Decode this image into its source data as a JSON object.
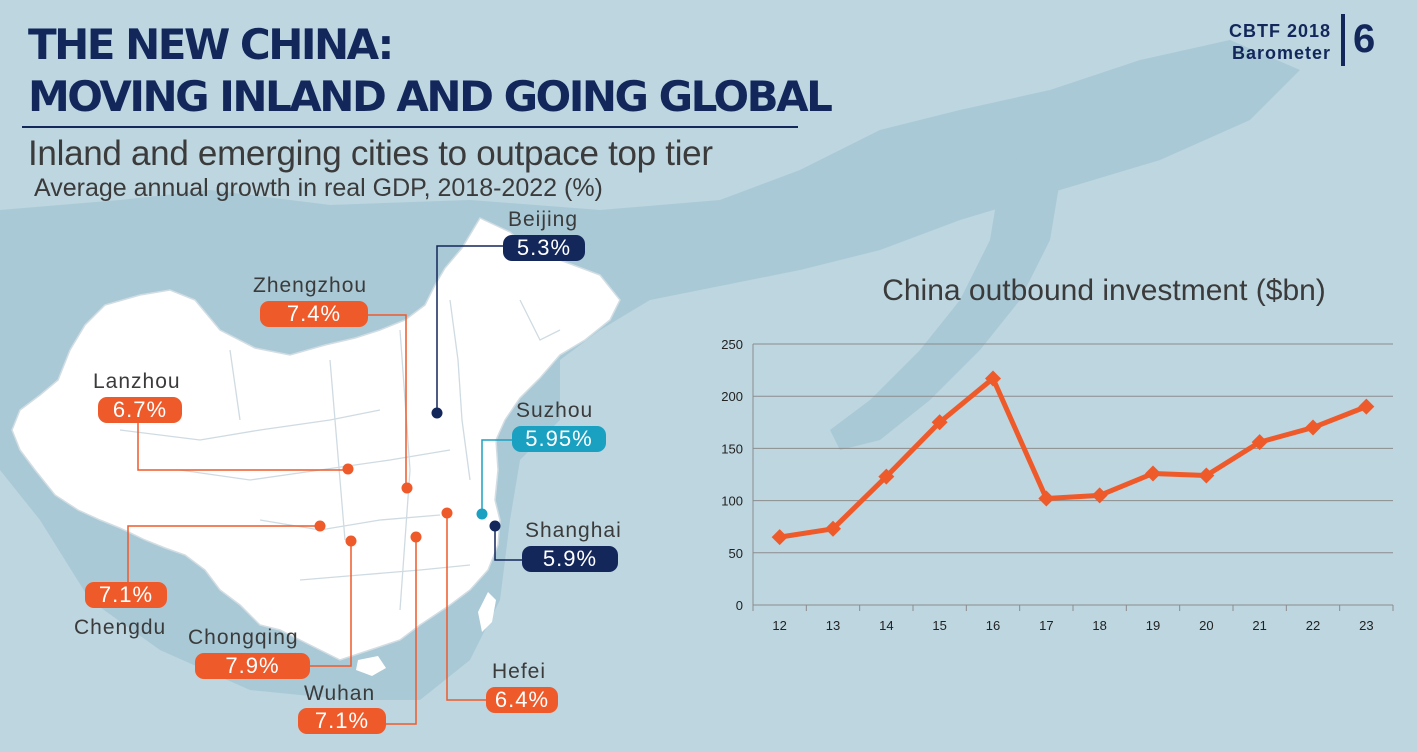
{
  "header": {
    "title_line1": "THE NEW CHINA:",
    "title_line2": "MOVING INLAND AND GOING GLOBAL",
    "subtitle": "Inland and emerging cities to outpace top tier",
    "subnote": "Average annual growth in real GDP, 2018-2022 (%)",
    "brand_line1": "CBTF 2018",
    "brand_line2": "Barometer",
    "page_number": "6"
  },
  "colors": {
    "navy": "#13275b",
    "orange": "#ef5a2a",
    "teal": "#1aa0c1",
    "background": "#bdd6e0"
  },
  "cities": [
    {
      "name": "Beijing",
      "value": "5.3%",
      "color": "navy"
    },
    {
      "name": "Zhengzhou",
      "value": "7.4%",
      "color": "orange"
    },
    {
      "name": "Lanzhou",
      "value": "6.7%",
      "color": "orange"
    },
    {
      "name": "Suzhou",
      "value": "5.95%",
      "color": "teal"
    },
    {
      "name": "Shanghai",
      "value": "5.9%",
      "color": "navy"
    },
    {
      "name": "Chengdu",
      "value": "7.1%",
      "color": "orange"
    },
    {
      "name": "Chongqing",
      "value": "7.9%",
      "color": "orange"
    },
    {
      "name": "Wuhan",
      "value": "7.1%",
      "color": "orange"
    },
    {
      "name": "Hefei",
      "value": "6.4%",
      "color": "orange"
    }
  ],
  "chart_data": {
    "type": "line",
    "title": "China outbound investment ($bn)",
    "x": [
      "12",
      "13",
      "14",
      "15",
      "16",
      "17",
      "18",
      "19",
      "20",
      "21",
      "22",
      "23"
    ],
    "series": [
      {
        "values": [
          65,
          73,
          123,
          175,
          217,
          102,
          105,
          126,
          124,
          156,
          170,
          190
        ]
      }
    ],
    "ylim": [
      0,
      250
    ],
    "yticks": [
      0,
      50,
      100,
      150,
      200,
      250
    ],
    "grid": true,
    "legend": "none",
    "xlabel": "",
    "ylabel": ""
  }
}
